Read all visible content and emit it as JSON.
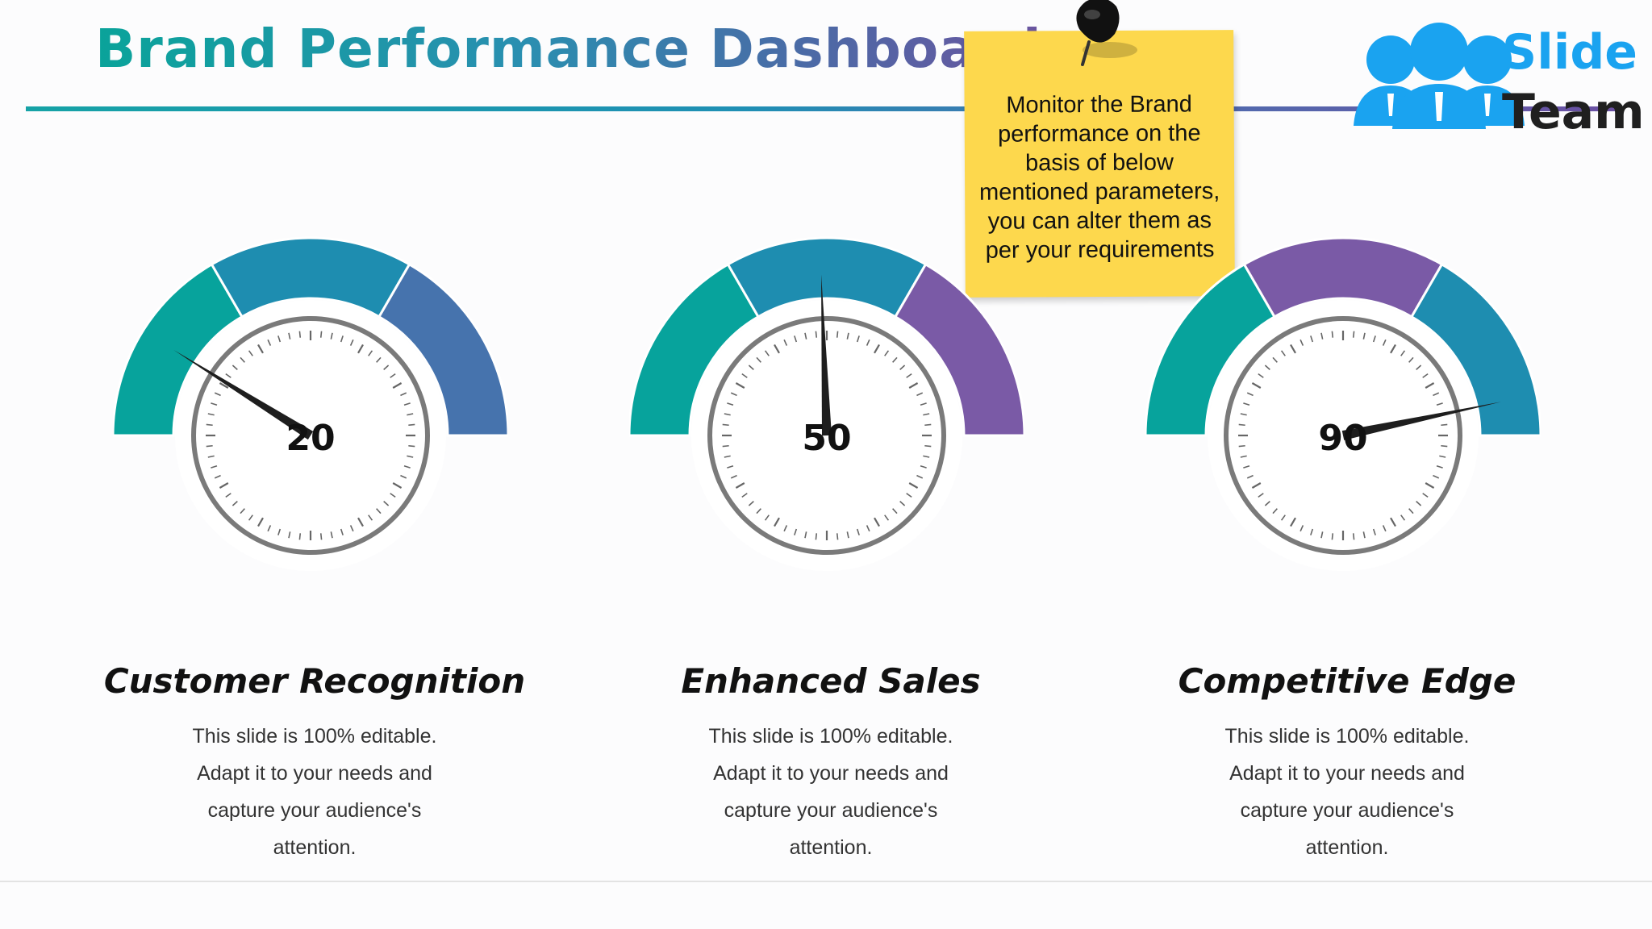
{
  "header": {
    "title": "Brand Performance Dashboard"
  },
  "note": {
    "text": "Monitor the Brand performance on the basis of below mentioned parameters, you can alter them as per your requirements"
  },
  "logo": {
    "word1": "Slide",
    "word2": "Team"
  },
  "colors": {
    "teal": "#07a39c",
    "blue_teal": "#1e8db0",
    "steel_blue": "#4673ad",
    "purple": "#7a5aa6",
    "track_gray": "#ebebee",
    "note_yellow": "#fdd84d"
  },
  "chart_data": [
    {
      "type": "gauge",
      "title": "Customer Recognition",
      "value": 20,
      "range": [
        0,
        100
      ],
      "band_colors": [
        "#07a39c",
        "#1e8db0",
        "#4673ad"
      ],
      "description": "This slide is 100% editable. Adapt it to your needs and capture your audience's attention."
    },
    {
      "type": "gauge",
      "title": "Enhanced Sales",
      "value": 50,
      "range": [
        0,
        100
      ],
      "band_colors": [
        "#07a39c",
        "#1e8db0",
        "#7a5aa6"
      ],
      "description": "This slide is 100% editable. Adapt it to your needs and capture your audience's attention."
    },
    {
      "type": "gauge",
      "title": "Competitive Edge",
      "value": 90,
      "range": [
        0,
        100
      ],
      "band_colors": [
        "#07a39c",
        "#7a5aa6",
        "#1e8db0"
      ],
      "description": "This slide is 100% editable. Adapt it to your needs and capture your audience's attention."
    }
  ]
}
